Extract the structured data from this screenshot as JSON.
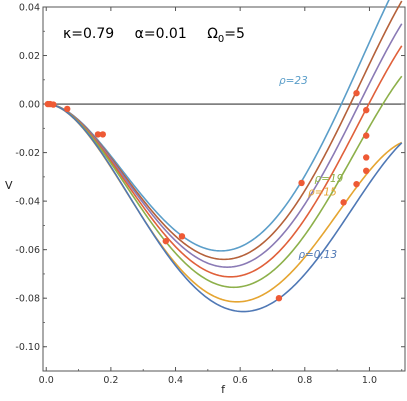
{
  "chart_data": {
    "type": "line",
    "xlabel": "f",
    "ylabel": "V",
    "xlim": [
      -0.01,
      1.11
    ],
    "ylim": [
      -0.11,
      0.04
    ],
    "x_ticks": [
      {
        "v": 0.0,
        "label": "0.0"
      },
      {
        "v": 0.2,
        "label": "0.2"
      },
      {
        "v": 0.4,
        "label": "0.4"
      },
      {
        "v": 0.6,
        "label": "0.6"
      },
      {
        "v": 0.8,
        "label": "0.8"
      },
      {
        "v": 1.0,
        "label": "1.0"
      }
    ],
    "y_ticks": [
      {
        "v": 0.04,
        "label": "0.04"
      },
      {
        "v": 0.02,
        "label": "0.02"
      },
      {
        "v": 0.0,
        "label": "0.00"
      },
      {
        "v": -0.02,
        "label": "-0.02"
      },
      {
        "v": -0.04,
        "label": "-0.04"
      },
      {
        "v": -0.06,
        "label": "-0.06"
      },
      {
        "v": -0.08,
        "label": "-0.08"
      },
      {
        "v": -0.1,
        "label": "-0.10"
      }
    ],
    "annotation": {
      "kappa": "κ=0.79",
      "alpha": "α=0.01",
      "omega_base": "Ω",
      "omega_sub": "0",
      "omega_val": "=5"
    },
    "series": [
      {
        "name": "ρ=23",
        "color": "#5b9ec9",
        "valley": [
          0.54,
          -0.0605
        ],
        "peak": [
          1.0,
          0.0255
        ]
      },
      {
        "color": "#b5613a",
        "valley": [
          0.55,
          -0.064
        ],
        "peak": [
          1.0,
          0.0165
        ]
      },
      {
        "color": "#8a7ab5",
        "valley": [
          0.56,
          -0.0672
        ],
        "peak": [
          1.0,
          0.0085
        ]
      },
      {
        "color": "#e0603a",
        "valley": [
          0.57,
          -0.0712
        ],
        "peak": [
          0.99,
          -0.002
        ]
      },
      {
        "name": "ρ=19",
        "color": "#8db04a",
        "valley": [
          0.58,
          -0.0755
        ],
        "peak": [
          0.98,
          -0.014
        ]
      },
      {
        "name": "ρ=15",
        "color": "#e5a531",
        "valley": [
          0.59,
          -0.0815
        ],
        "peak": [
          0.97,
          -0.0325
        ]
      },
      {
        "name": "ρ=0,13",
        "color": "#4f78b5",
        "valley": [
          0.61,
          -0.0855
        ],
        "peak": [
          0.97,
          -0.0385
        ]
      }
    ],
    "points": [
      [
        0.005,
        0.0
      ],
      [
        0.012,
        0.0
      ],
      [
        0.022,
        -0.0002
      ],
      [
        0.065,
        -0.002
      ],
      [
        0.16,
        -0.0125
      ],
      [
        0.175,
        -0.0125
      ],
      [
        0.37,
        -0.0565
      ],
      [
        0.42,
        -0.0545
      ],
      [
        0.72,
        -0.08
      ],
      [
        0.79,
        -0.0325
      ],
      [
        0.92,
        -0.0405
      ],
      [
        0.96,
        -0.033
      ],
      [
        0.96,
        0.0045
      ],
      [
        0.99,
        -0.0025
      ],
      [
        0.99,
        -0.013
      ],
      [
        0.99,
        -0.022
      ],
      [
        0.99,
        -0.0275
      ]
    ],
    "point_color": "#ee5a35"
  }
}
